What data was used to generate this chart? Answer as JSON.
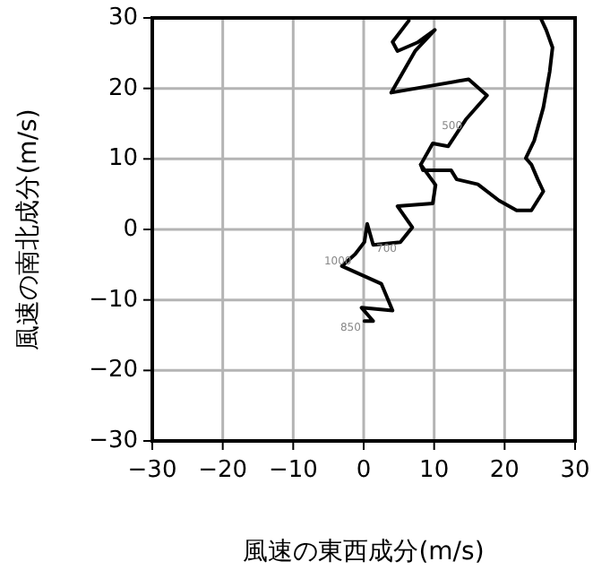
{
  "chart_data": {
    "type": "line",
    "xlabel": "風速の東西成分(m/s)",
    "ylabel": "風速の南北成分(m/s)",
    "xlim": [
      -30,
      30
    ],
    "ylim": [
      -30,
      30
    ],
    "xticks": [
      {
        "value": -30,
        "label": "−30"
      },
      {
        "value": -20,
        "label": "−20"
      },
      {
        "value": -10,
        "label": "−10"
      },
      0,
      10,
      20,
      30
    ],
    "yticks": [
      {
        "value": -30,
        "label": "−30"
      },
      {
        "value": -20,
        "label": "−20"
      },
      {
        "value": -10,
        "label": "−10"
      },
      0,
      10,
      20,
      30
    ],
    "grid": true,
    "marker": "none",
    "line_style": "solid",
    "series": [
      {
        "color": "#000000",
        "x": [
          0.1,
          1.35,
          -0.3,
          4.1,
          2.5,
          -3.1,
          -1.2,
          0.1,
          0.5,
          1.35,
          5.2,
          6.9,
          4.8,
          9.8,
          10.2,
          8.1,
          9.8,
          12,
          14.5,
          17.5,
          14.9,
          3.9,
          7.3,
          10.1,
          7.6,
          4.8,
          4.1,
          6.4
        ],
        "values": [
          -13,
          -13,
          -11.1,
          -11.5,
          -7.7,
          -5.2,
          -3.5,
          -1.8,
          0.8,
          -2.2,
          -1.8,
          0.3,
          3.3,
          3.7,
          6.3,
          9.2,
          12.2,
          11.8,
          15.6,
          19,
          21.3,
          19.4,
          25.3,
          28.3,
          26.5,
          25.3,
          26.6,
          29.6
        ]
      },
      {
        "color": "#000000",
        "x": [
          8.1,
          8.4,
          12.4,
          13.2,
          16.2,
          19.2,
          21.7,
          23.8,
          25.5,
          24.7,
          23.8,
          23,
          24.2,
          25.5,
          26.4,
          26.8,
          25.9,
          25.1
        ],
        "values": [
          9.2,
          8.4,
          8.4,
          7.1,
          6.4,
          4.1,
          2.7,
          2.7,
          5.4,
          7.1,
          9.2,
          10.1,
          12.6,
          17.3,
          22.4,
          25.8,
          28.3,
          30
        ]
      }
    ],
    "annotations": [
      {
        "text": "850",
        "x": 0.1,
        "y": -13
      },
      {
        "text": "1000",
        "x": -1.2,
        "y": -3.5
      },
      {
        "text": "700",
        "x": 5.2,
        "y": -1.8
      },
      {
        "text": "500",
        "x": 14.5,
        "y": 15.6
      }
    ]
  }
}
